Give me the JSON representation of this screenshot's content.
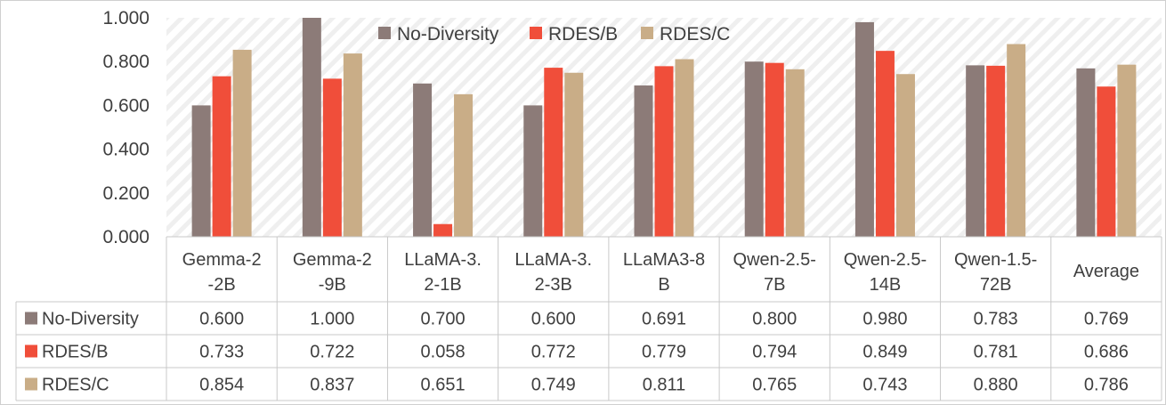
{
  "chart_data": {
    "type": "bar",
    "title": "",
    "xlabel": "",
    "ylabel": "",
    "ylim": [
      0,
      1.0
    ],
    "y_ticks": [
      "0.000",
      "0.200",
      "0.400",
      "0.600",
      "0.800",
      "1.000"
    ],
    "categories": [
      [
        "Gemma-2",
        "-2B"
      ],
      [
        "Gemma-2",
        "-9B"
      ],
      [
        "LLaMA-3.",
        "2-1B"
      ],
      [
        "LLaMA-3.",
        "2-3B"
      ],
      [
        "LLaMA3-8",
        "B"
      ],
      [
        "Qwen-2.5-",
        "7B"
      ],
      [
        "Qwen-2.5-",
        "14B"
      ],
      [
        "Qwen-1.5-",
        "72B"
      ],
      [
        "Average"
      ]
    ],
    "series": [
      {
        "name": "No-Diversity",
        "color": "#8c7b78",
        "values": [
          0.6,
          1.0,
          0.7,
          0.6,
          0.691,
          0.8,
          0.98,
          0.783,
          0.769
        ],
        "labels": [
          "0.600",
          "1.000",
          "0.700",
          "0.600",
          "0.691",
          "0.800",
          "0.980",
          "0.783",
          "0.769"
        ]
      },
      {
        "name": "RDES/B",
        "color": "#f04e3a",
        "values": [
          0.733,
          0.722,
          0.058,
          0.772,
          0.779,
          0.794,
          0.849,
          0.781,
          0.686
        ],
        "labels": [
          "0.733",
          "0.722",
          "0.058",
          "0.772",
          "0.779",
          "0.794",
          "0.849",
          "0.781",
          "0.686"
        ]
      },
      {
        "name": "RDES/C",
        "color": "#c9ad87",
        "values": [
          0.854,
          0.837,
          0.651,
          0.749,
          0.811,
          0.765,
          0.743,
          0.88,
          0.786
        ],
        "labels": [
          "0.854",
          "0.837",
          "0.651",
          "0.749",
          "0.811",
          "0.765",
          "0.743",
          "0.880",
          "0.786"
        ]
      }
    ],
    "legend_position": "top-right",
    "grid": false,
    "data_table": true
  }
}
